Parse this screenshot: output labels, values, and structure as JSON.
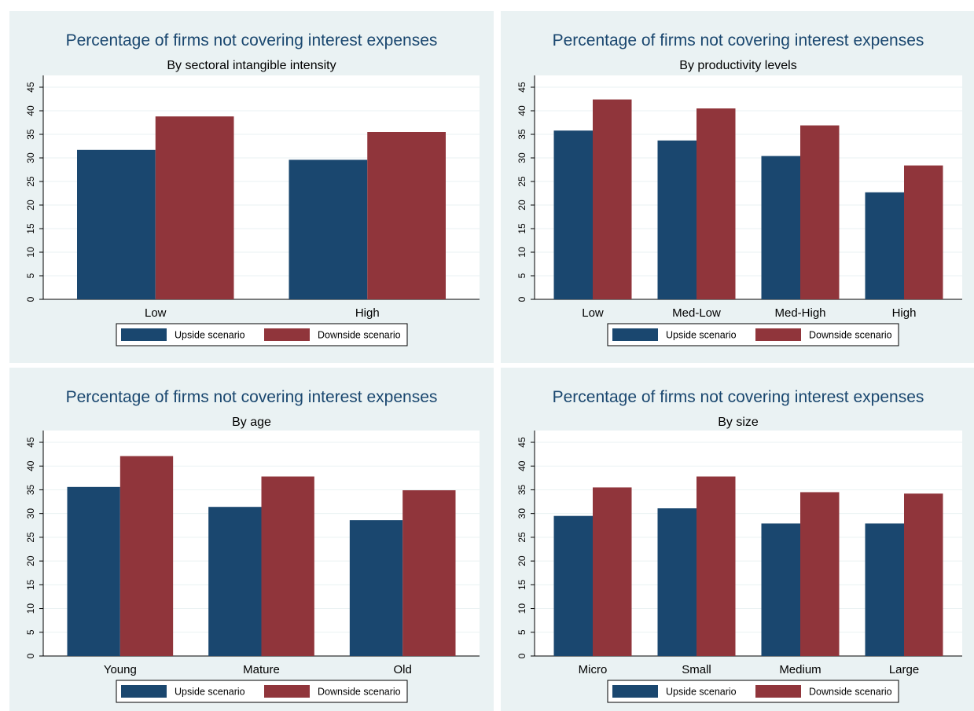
{
  "colors": {
    "upside": "#1a476f",
    "downside": "#90353b",
    "panel_bg": "#eaf2f3",
    "plot_bg": "#ffffff",
    "grid": "#eaf2f3"
  },
  "chart_data": [
    {
      "type": "bar",
      "title": "Percentage of firms not covering interest expenses",
      "subtitle": "By sectoral intangible intensity",
      "categories": [
        "Low",
        "High"
      ],
      "series": [
        {
          "name": "Upside scenario",
          "values": [
            31.7,
            29.6
          ]
        },
        {
          "name": "Downside scenario",
          "values": [
            38.8,
            35.5
          ]
        }
      ],
      "ylim": [
        0,
        45
      ],
      "yticks": [
        0,
        5,
        10,
        15,
        20,
        25,
        30,
        35,
        40,
        45
      ],
      "legend": "bottom",
      "grid": true
    },
    {
      "type": "bar",
      "title": "Percentage of firms not covering interest expenses",
      "subtitle": "By productivity levels",
      "categories": [
        "Low",
        "Med-Low",
        "Med-High",
        "High"
      ],
      "series": [
        {
          "name": "Upside scenario",
          "values": [
            35.8,
            33.7,
            30.4,
            22.7
          ]
        },
        {
          "name": "Downside scenario",
          "values": [
            42.4,
            40.5,
            36.9,
            28.4
          ]
        }
      ],
      "ylim": [
        0,
        45
      ],
      "yticks": [
        0,
        5,
        10,
        15,
        20,
        25,
        30,
        35,
        40,
        45
      ],
      "legend": "bottom",
      "grid": true
    },
    {
      "type": "bar",
      "title": "Percentage of firms not covering interest expenses",
      "subtitle": "By age",
      "categories": [
        "Young",
        "Mature",
        "Old"
      ],
      "series": [
        {
          "name": "Upside scenario",
          "values": [
            35.6,
            31.4,
            28.6
          ]
        },
        {
          "name": "Downside scenario",
          "values": [
            42.1,
            37.8,
            34.9
          ]
        }
      ],
      "ylim": [
        0,
        45
      ],
      "yticks": [
        0,
        5,
        10,
        15,
        20,
        25,
        30,
        35,
        40,
        45
      ],
      "legend": "bottom",
      "grid": true
    },
    {
      "type": "bar",
      "title": "Percentage of firms not covering interest expenses",
      "subtitle": "By size",
      "categories": [
        "Micro",
        "Small",
        "Medium",
        "Large"
      ],
      "series": [
        {
          "name": "Upside scenario",
          "values": [
            29.5,
            31.1,
            27.9,
            27.9
          ]
        },
        {
          "name": "Downside scenario",
          "values": [
            35.5,
            37.8,
            34.5,
            34.2
          ]
        }
      ],
      "ylim": [
        0,
        45
      ],
      "yticks": [
        0,
        5,
        10,
        15,
        20,
        25,
        30,
        35,
        40,
        45
      ],
      "legend": "bottom",
      "grid": true
    }
  ]
}
